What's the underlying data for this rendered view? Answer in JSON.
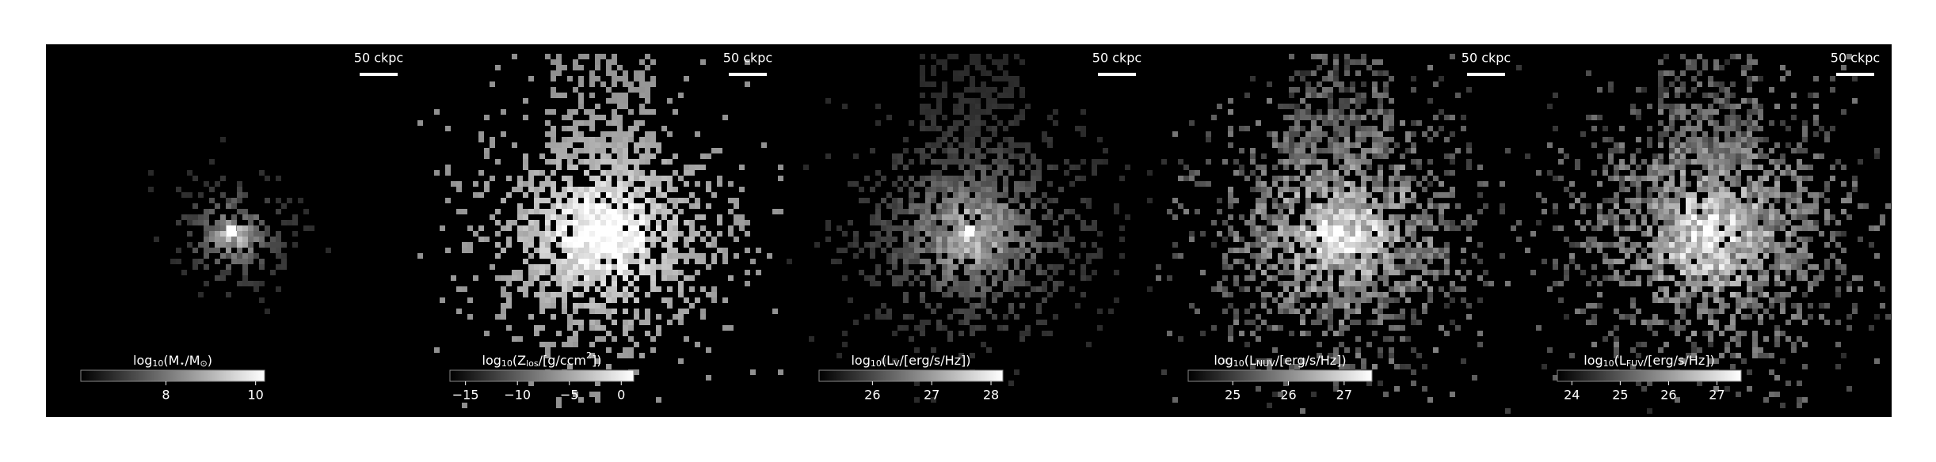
{
  "chart_data": [
    {
      "type": "image",
      "scale_bar": "50 ckpc",
      "colormap": "gray",
      "colorbar_label": [
        {
          "text": "log"
        },
        {
          "text": "10",
          "sub": true
        },
        {
          "text": "(M"
        },
        {
          "text": "⋆",
          "sub": true
        },
        {
          "text": "/M"
        },
        {
          "text": "⊙",
          "sub": true
        },
        {
          "text": ")"
        }
      ],
      "clim": [
        6.1,
        10.2
      ],
      "cticks": [
        8,
        10
      ]
    },
    {
      "type": "image",
      "scale_bar": "50 ckpc",
      "colormap": "gray",
      "colorbar_label": [
        {
          "text": "log"
        },
        {
          "text": "10",
          "sub": true
        },
        {
          "text": "(Z"
        },
        {
          "text": "los",
          "sub": true
        },
        {
          "text": "/[g/ccm"
        },
        {
          "text": "2",
          "sup": true
        },
        {
          "text": "])"
        }
      ],
      "clim": [
        -16.5,
        1.2
      ],
      "cticks": [
        {
          "value": -15,
          "label": "−15"
        },
        {
          "value": -10,
          "label": "−10"
        },
        {
          "value": -5,
          "label": "−5"
        },
        0
      ]
    },
    {
      "type": "image",
      "scale_bar": "50 ckpc",
      "colormap": "gray",
      "colorbar_label": [
        {
          "text": "log"
        },
        {
          "text": "10",
          "sub": true
        },
        {
          "text": "(L"
        },
        {
          "text": "V",
          "sub": true
        },
        {
          "text": "/[erg/s/Hz])"
        }
      ],
      "clim": [
        25.1,
        28.2
      ],
      "cticks": [
        26,
        27,
        28
      ]
    },
    {
      "type": "image",
      "scale_bar": "50 ckpc",
      "colormap": "gray",
      "colorbar_label": [
        {
          "text": "log"
        },
        {
          "text": "10",
          "sub": true
        },
        {
          "text": "(L"
        },
        {
          "text": "NUV",
          "sub": true
        },
        {
          "text": "/[erg/s/Hz])"
        }
      ],
      "clim": [
        24.2,
        27.5
      ],
      "cticks": [
        25,
        26,
        27
      ]
    },
    {
      "type": "image",
      "scale_bar": "50 ckpc",
      "colormap": "gray",
      "colorbar_label": [
        {
          "text": "log"
        },
        {
          "text": "10",
          "sub": true
        },
        {
          "text": "(L"
        },
        {
          "text": "FUV",
          "sub": true
        },
        {
          "text": "/[erg/s/Hz])"
        }
      ],
      "clim": [
        23.7,
        27.5
      ],
      "cticks": [
        24,
        25,
        26,
        27
      ]
    }
  ]
}
